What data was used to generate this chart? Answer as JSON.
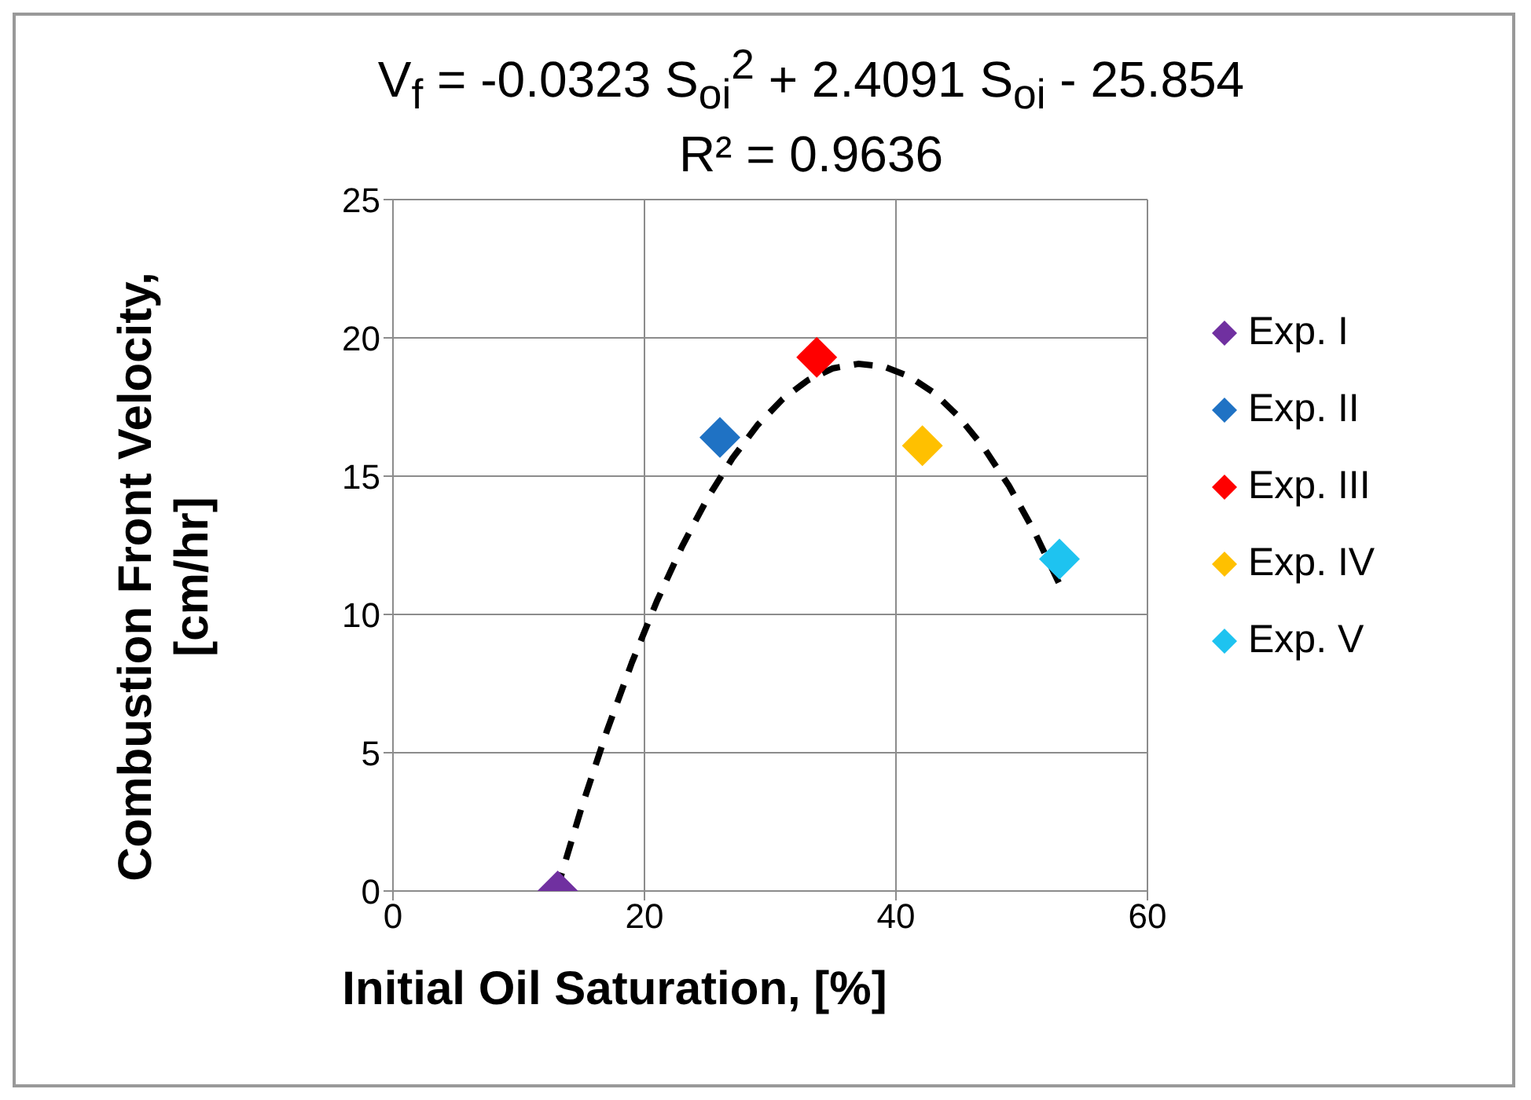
{
  "chart_data": {
    "type": "scatter",
    "title": "V$_{f}$ = -0.0323 S$_{oi}$$^{2}$ + 2.4091 S$_{oi}$ - 25.854",
    "subtitle": "R² = 0.9636",
    "xlabel": "Initial  Oil Saturation,  [%]",
    "ylabel": "Combustion  Front Velocity, [cm/hr]",
    "xlim": [
      0,
      60
    ],
    "xticks": [
      0,
      20,
      40,
      60
    ],
    "ylim": [
      0,
      25
    ],
    "yticks": [
      0,
      5,
      10,
      15,
      20,
      25
    ],
    "grid": true,
    "legend": "right",
    "marker": "diamond",
    "series": [
      {
        "name": "Exp. I",
        "color": "#7030a0",
        "x": [
          13.1
        ],
        "values": [
          0
        ]
      },
      {
        "name": "Exp. II",
        "color": "#1f72c4",
        "x": [
          26.0
        ],
        "values": [
          16.4
        ]
      },
      {
        "name": "Exp. III",
        "color": "#ff0000",
        "x": [
          33.7
        ],
        "values": [
          19.3
        ]
      },
      {
        "name": "Exp. IV",
        "color": "#ffc000",
        "x": [
          42.1
        ],
        "values": [
          16.1
        ]
      },
      {
        "name": "Exp. V",
        "color": "#1ec3f0",
        "x": [
          53.0
        ],
        "values": [
          12.0
        ]
      },
      {
        "type": "line",
        "color": "#000000",
        "line_style": "dashed",
        "marker": "none",
        "x": [
          13,
          15,
          17,
          19,
          21,
          23,
          25,
          27,
          29,
          31,
          33,
          35,
          37,
          39,
          41,
          43,
          45,
          47,
          49,
          51,
          53
        ],
        "values": [
          0.0,
          3.02,
          5.77,
          8.26,
          10.49,
          12.47,
          14.19,
          15.65,
          16.85,
          17.79,
          18.47,
          18.9,
          19.06,
          18.97,
          18.62,
          18.02,
          17.15,
          16.02,
          14.64,
          13.0,
          11.1
        ]
      }
    ]
  }
}
